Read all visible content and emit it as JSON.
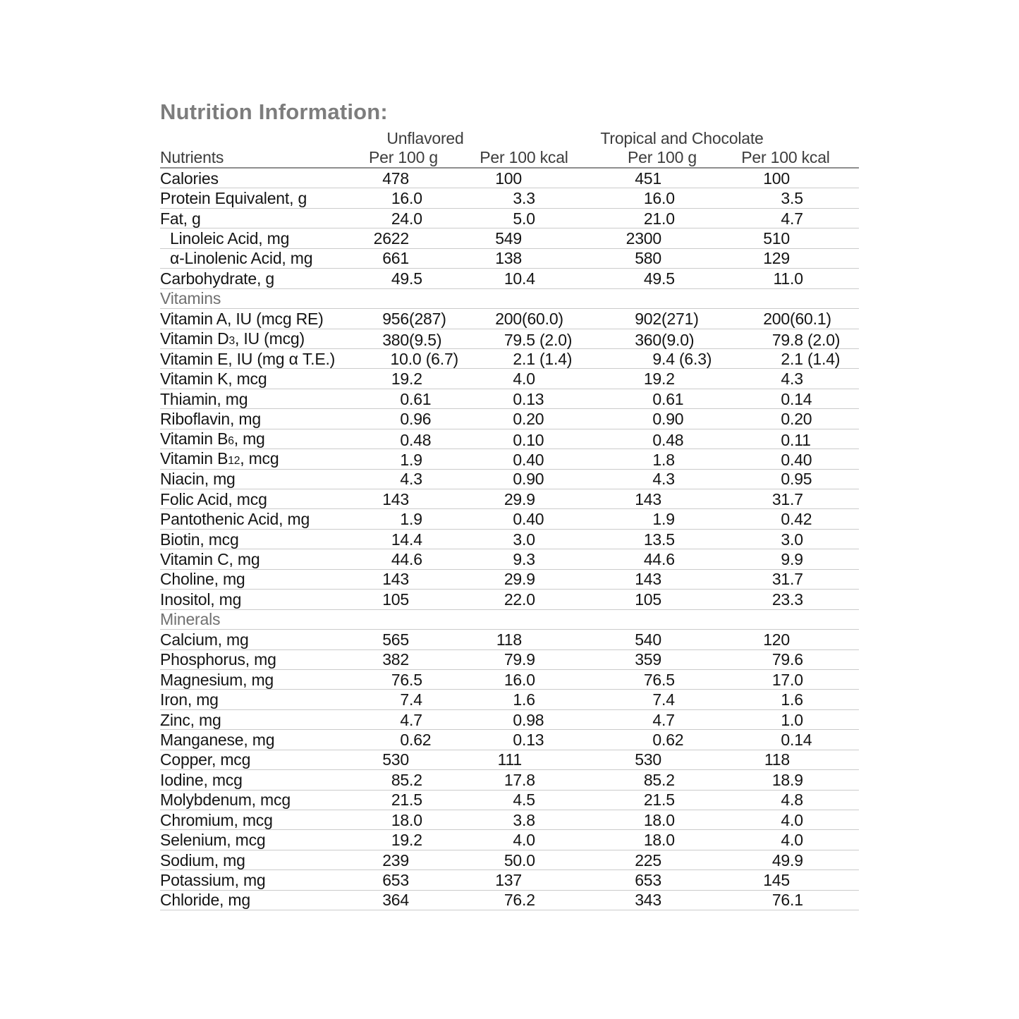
{
  "title": "Nutrition Information:",
  "table": {
    "group_headers": [
      {
        "label": "Unflavored"
      },
      {
        "label": "Tropical and Chocolate"
      }
    ],
    "column_headers": [
      "Nutrients",
      "Per 100 g",
      "Per 100 kcal",
      "Per 100 g",
      "Per 100 kcal"
    ],
    "rows": [
      {
        "type": "data",
        "label": "Calories",
        "values": [
          "478",
          "100",
          "451",
          "100"
        ]
      },
      {
        "type": "data",
        "label": "Protein Equivalent, g",
        "values": [
          "16.0",
          "3.3",
          "16.0",
          "3.5"
        ]
      },
      {
        "type": "data",
        "label": "Fat, g",
        "values": [
          "24.0",
          "5.0",
          "21.0",
          "4.7"
        ]
      },
      {
        "type": "data",
        "label": "Linoleic Acid, mg",
        "indent": true,
        "values": [
          "2622",
          "549",
          "2300",
          "510"
        ]
      },
      {
        "type": "data",
        "label": "α-Linolenic Acid, mg",
        "indent": true,
        "values": [
          "661",
          "138",
          "580",
          "129"
        ]
      },
      {
        "type": "data",
        "label": "Carbohydrate, g",
        "values": [
          "49.5",
          "10.4",
          "49.5",
          "11.0"
        ]
      },
      {
        "type": "section",
        "label": "Vitamins"
      },
      {
        "type": "data",
        "label": "Vitamin A, IU (mcg RE)",
        "values": [
          "956 (287)",
          "200 (60.0)",
          "902 (271)",
          "200 (60.1)"
        ]
      },
      {
        "type": "data",
        "label": "Vitamin D|3|, IU (mcg)",
        "values": [
          "380 (9.5)",
          "79.5 (2.0)",
          "360 (9.0)",
          "79.8 (2.0)"
        ]
      },
      {
        "type": "data",
        "label": "Vitamin E, IU (mg α T.E.)",
        "values": [
          "10.0 (6.7)",
          "2.1 (1.4)",
          "9.4 (6.3)",
          "2.1 (1.4)"
        ]
      },
      {
        "type": "data",
        "label": "Vitamin K, mcg",
        "values": [
          "19.2",
          "4.0",
          "19.2",
          "4.3"
        ]
      },
      {
        "type": "data",
        "label": "Thiamin, mg",
        "values": [
          "0.61",
          "0.13",
          "0.61",
          "0.14"
        ]
      },
      {
        "type": "data",
        "label": "Riboflavin, mg",
        "values": [
          "0.96",
          "0.20",
          "0.90",
          "0.20"
        ]
      },
      {
        "type": "data",
        "label": "Vitamin B|6|, mg",
        "values": [
          "0.48",
          "0.10",
          "0.48",
          "0.11"
        ]
      },
      {
        "type": "data",
        "label": "Vitamin B|12|, mcg",
        "values": [
          "1.9",
          "0.40",
          "1.8",
          "0.40"
        ]
      },
      {
        "type": "data",
        "label": "Niacin, mg",
        "values": [
          "4.3",
          "0.90",
          "4.3",
          "0.95"
        ]
      },
      {
        "type": "data",
        "label": "Folic Acid, mcg",
        "values": [
          "143",
          "29.9",
          "143",
          "31.7"
        ]
      },
      {
        "type": "data",
        "label": "Pantothenic Acid, mg",
        "values": [
          "1.9",
          "0.40",
          "1.9",
          "0.42"
        ]
      },
      {
        "type": "data",
        "label": "Biotin, mcg",
        "values": [
          "14.4",
          "3.0",
          "13.5",
          "3.0"
        ]
      },
      {
        "type": "data",
        "label": "Vitamin C, mg",
        "values": [
          "44.6",
          "9.3",
          "44.6",
          "9.9"
        ]
      },
      {
        "type": "data",
        "label": "Choline, mg",
        "values": [
          "143",
          "29.9",
          "143",
          "31.7"
        ]
      },
      {
        "type": "data",
        "label": "Inositol, mg",
        "values": [
          "105",
          "22.0",
          "105",
          "23.3"
        ]
      },
      {
        "type": "section",
        "label": "Minerals"
      },
      {
        "type": "data",
        "label": "Calcium, mg",
        "values": [
          "565",
          "118",
          "540",
          "120"
        ]
      },
      {
        "type": "data",
        "label": "Phosphorus, mg",
        "values": [
          "382",
          "79.9",
          "359",
          "79.6"
        ]
      },
      {
        "type": "data",
        "label": "Magnesium, mg",
        "values": [
          "76.5",
          "16.0",
          "76.5",
          "17.0"
        ]
      },
      {
        "type": "data",
        "label": "Iron, mg",
        "values": [
          "7.4",
          "1.6",
          "7.4",
          "1.6"
        ]
      },
      {
        "type": "data",
        "label": "Zinc, mg",
        "values": [
          "4.7",
          "0.98",
          "4.7",
          "1.0"
        ]
      },
      {
        "type": "data",
        "label": "Manganese, mg",
        "values": [
          "0.62",
          "0.13",
          "0.62",
          "0.14"
        ]
      },
      {
        "type": "data",
        "label": "Copper, mcg",
        "values": [
          "530",
          "111",
          "530",
          "118"
        ]
      },
      {
        "type": "data",
        "label": "Iodine, mcg",
        "values": [
          "85.2",
          "17.8",
          "85.2",
          "18.9"
        ]
      },
      {
        "type": "data",
        "label": "Molybdenum, mcg",
        "values": [
          "21.5",
          "4.5",
          "21.5",
          "4.8"
        ]
      },
      {
        "type": "data",
        "label": "Chromium, mcg",
        "values": [
          "18.0",
          "3.8",
          "18.0",
          "4.0"
        ]
      },
      {
        "type": "data",
        "label": "Selenium, mcg",
        "values": [
          "19.2",
          "4.0",
          "18.0",
          "4.0"
        ]
      },
      {
        "type": "data",
        "label": "Sodium, mg",
        "values": [
          "239",
          "50.0",
          "225",
          "49.9"
        ]
      },
      {
        "type": "data",
        "label": "Potassium, mg",
        "values": [
          "653",
          "137",
          "653",
          "145"
        ]
      },
      {
        "type": "data",
        "label": "Chloride, mg",
        "values": [
          "364",
          "76.2",
          "343",
          "76.1"
        ]
      }
    ]
  }
}
